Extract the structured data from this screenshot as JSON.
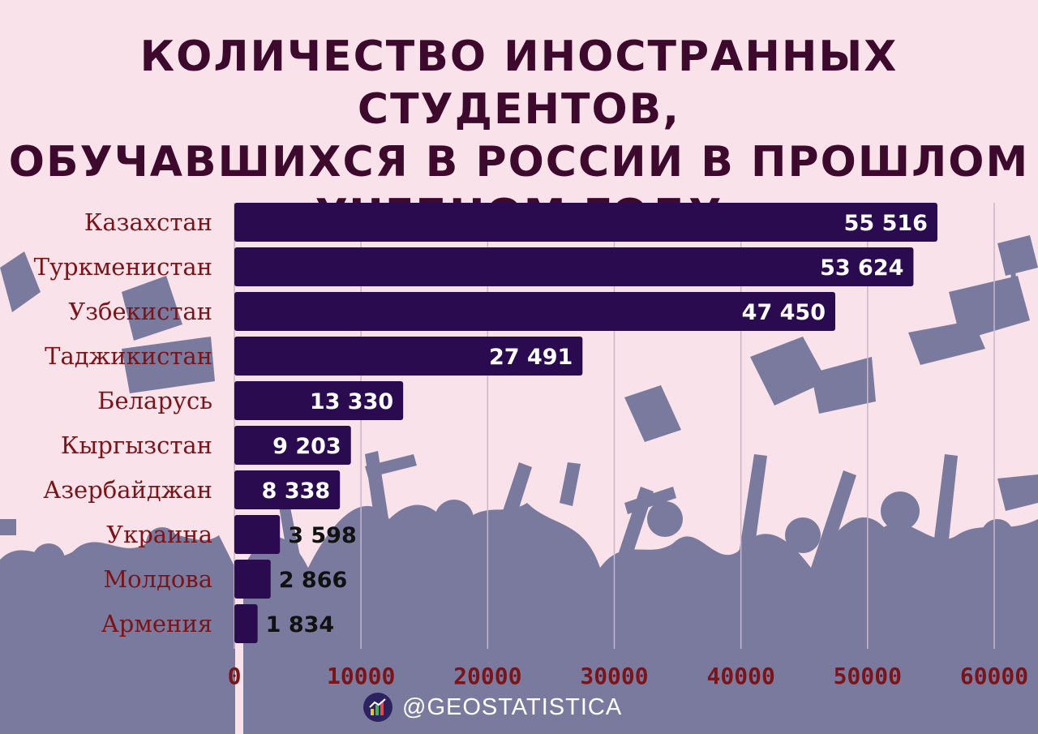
{
  "title_lines": [
    "КОЛИЧЕСТВО ИНОСТРАННЫХ СТУДЕНТОВ,",
    "ОБУЧАВШИХСЯ В РОССИИ В ПРОШЛОМ",
    "УЧЕБНОМ ГОДУ"
  ],
  "footer": {
    "handle": "@GEOSTATISTICA",
    "logo_icon": "bar-chart-logo-icon"
  },
  "colors": {
    "background": "#f9e2ea",
    "bar": "#2b0b4f",
    "title": "#3d0a2e",
    "labels": "#7a1418",
    "silhouette": "#7a7a9f",
    "grid": "#c9b6c9"
  },
  "chart_data": {
    "type": "bar",
    "orientation": "horizontal",
    "categories": [
      "Казахстан",
      "Туркменистан",
      "Узбекистан",
      "Таджикистан",
      "Беларусь",
      "Кыргызстан",
      "Азербайджан",
      "Украина",
      "Молдова",
      "Армения"
    ],
    "values": [
      55516,
      53624,
      47450,
      27491,
      13330,
      9203,
      8338,
      3598,
      2866,
      1834
    ],
    "value_labels": [
      "55 516",
      "53 624",
      "47 450",
      "27 491",
      "13 330",
      "9 203",
      "8 338",
      "3 598",
      "2 866",
      "1 834"
    ],
    "xlim": [
      0,
      60000
    ],
    "x_ticks": [
      "0",
      "10000",
      "20000",
      "30000",
      "40000",
      "50000",
      "60000"
    ],
    "grid": "vertical",
    "legend": "none"
  }
}
